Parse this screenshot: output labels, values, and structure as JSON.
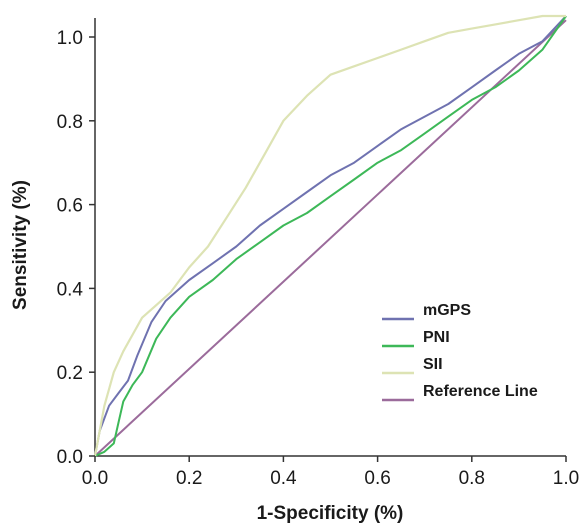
{
  "chart_data": {
    "type": "line",
    "title": "",
    "xlabel": "1-Specificity (%)",
    "ylabel": "Sensitivity (%)",
    "xlim": [
      0,
      1
    ],
    "ylim": [
      0,
      1
    ],
    "x_ticks": [
      "0.0",
      "0.2",
      "0.4",
      "0.6",
      "0.8",
      "1.0"
    ],
    "y_ticks": [
      "0.0",
      "0.2",
      "0.4",
      "0.6",
      "0.8",
      "1.0"
    ],
    "grid": false,
    "legend_position": "bottom-right",
    "series": [
      {
        "name": "mGPS",
        "color": "#6f72b0",
        "x": [
          0.0,
          0.01,
          0.03,
          0.05,
          0.07,
          0.09,
          0.12,
          0.15,
          0.2,
          0.25,
          0.3,
          0.35,
          0.4,
          0.45,
          0.5,
          0.55,
          0.6,
          0.65,
          0.7,
          0.75,
          0.8,
          0.85,
          0.9,
          0.95,
          1.0
        ],
        "y": [
          0.0,
          0.06,
          0.12,
          0.15,
          0.18,
          0.24,
          0.32,
          0.37,
          0.42,
          0.46,
          0.5,
          0.55,
          0.59,
          0.63,
          0.67,
          0.7,
          0.74,
          0.78,
          0.81,
          0.84,
          0.88,
          0.92,
          0.96,
          0.99,
          1.05
        ]
      },
      {
        "name": "PNI",
        "color": "#3db858",
        "x": [
          0.0,
          0.02,
          0.04,
          0.05,
          0.06,
          0.08,
          0.1,
          0.13,
          0.16,
          0.2,
          0.25,
          0.3,
          0.35,
          0.4,
          0.45,
          0.5,
          0.55,
          0.6,
          0.65,
          0.7,
          0.75,
          0.8,
          0.85,
          0.9,
          0.95,
          1.0
        ],
        "y": [
          0.0,
          0.01,
          0.03,
          0.08,
          0.13,
          0.17,
          0.2,
          0.28,
          0.33,
          0.38,
          0.42,
          0.47,
          0.51,
          0.55,
          0.58,
          0.62,
          0.66,
          0.7,
          0.73,
          0.77,
          0.81,
          0.85,
          0.88,
          0.92,
          0.97,
          1.05
        ]
      },
      {
        "name": "SII",
        "color": "#dde3b4",
        "x": [
          0.0,
          0.02,
          0.04,
          0.06,
          0.08,
          0.1,
          0.13,
          0.16,
          0.2,
          0.24,
          0.28,
          0.32,
          0.36,
          0.4,
          0.45,
          0.5,
          0.55,
          0.6,
          0.65,
          0.7,
          0.75,
          0.8,
          0.85,
          0.9,
          0.95,
          1.0
        ],
        "y": [
          0.0,
          0.12,
          0.2,
          0.25,
          0.29,
          0.33,
          0.36,
          0.39,
          0.45,
          0.5,
          0.57,
          0.64,
          0.72,
          0.8,
          0.86,
          0.91,
          0.93,
          0.95,
          0.97,
          0.99,
          1.01,
          1.02,
          1.03,
          1.04,
          1.05,
          1.05
        ]
      },
      {
        "name": "Reference Line",
        "color": "#9b6b9b",
        "x": [
          0.0,
          1.0
        ],
        "y": [
          0.0,
          1.04
        ]
      }
    ]
  }
}
